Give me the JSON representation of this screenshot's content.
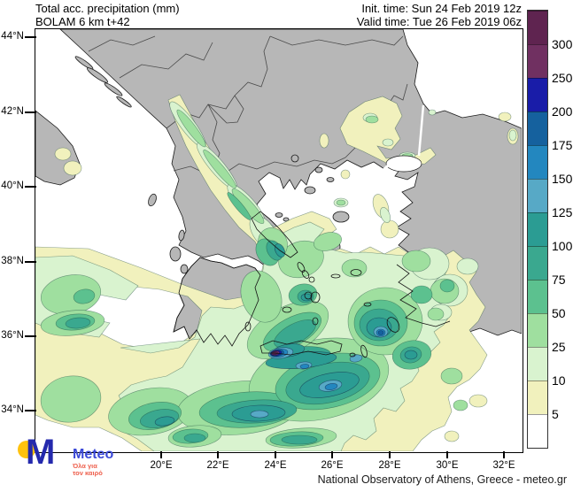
{
  "header": {
    "product": "Total acc. precipitation (mm)",
    "model": "BOLAM 6 km t+42",
    "init_time": "Init. time: Sun 24 Feb 2019 12z",
    "valid_time": "Valid time: Tue 26 Feb 2019 06z"
  },
  "map": {
    "lat_labels": [
      "44°N",
      "42°N",
      "40°N",
      "38°N",
      "36°N",
      "34°N"
    ],
    "lon_labels": [
      "20°E",
      "22°E",
      "24°E",
      "26°E",
      "28°E",
      "30°E",
      "32°E"
    ]
  },
  "colorbar": {
    "labels": [
      "5",
      "10",
      "25",
      "50",
      "75",
      "100",
      "125",
      "150",
      "175",
      "200",
      "250",
      "300"
    ],
    "colors": [
      "#ffffff",
      "#f1f1bd",
      "#d9f3cf",
      "#9fdf9f",
      "#5cc18f",
      "#3aa88f",
      "#2b9c93",
      "#57a9c6",
      "#2387bf",
      "#15619e",
      "#191ca8",
      "#703061",
      "#5f2450"
    ]
  },
  "palette": {
    "land": "#b7b7b7",
    "sea": "#ffffff",
    "coast": "#1a1a1a",
    "logo_blue": "#2429ad",
    "logo_text_blue": "#3b49d8",
    "logo_yellow": "#ffc20e",
    "logo_red": "#ee5f4c"
  },
  "footer": {
    "attribution": "National Observatory of Athens, Greece - meteo.gr",
    "logo_letter": "M",
    "logo_brand": "Meteo",
    "logo_tagline_line1": "Όλα για",
    "logo_tagline_line2": "τον καιρό"
  }
}
